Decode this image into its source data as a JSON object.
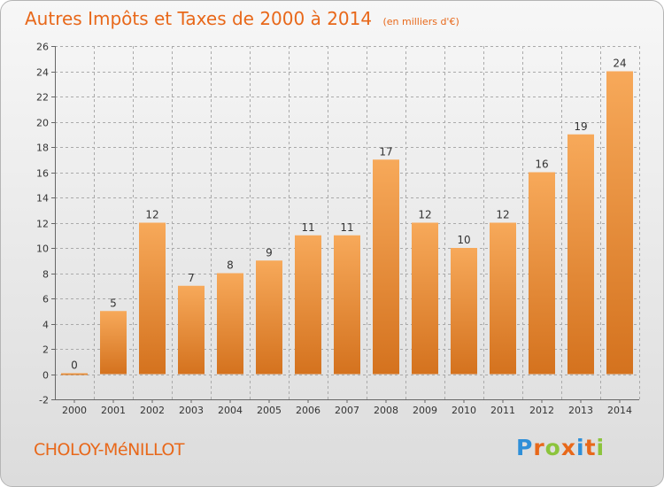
{
  "header": {
    "title": "Autres Impôts et Taxes de 2000 à 2014",
    "unit": "(en milliers d'€)"
  },
  "footer": {
    "commune": "CHOLOY-MéNILLOT",
    "logo_letters": [
      "P",
      "r",
      "o",
      "x",
      "i",
      "t",
      "i"
    ],
    "logo_colors": [
      "#2f8fd8",
      "#e8681a",
      "#8cc43c",
      "#e8681a",
      "#2f8fd8",
      "#e8681a",
      "#8cc43c"
    ]
  },
  "colors": {
    "title": "#e8681a",
    "bar_top": "#f7a95a",
    "bar_bottom": "#d4721e",
    "grid": "#aaaaaa"
  },
  "chart_data": {
    "type": "bar",
    "categories": [
      "2000",
      "2001",
      "2002",
      "2003",
      "2004",
      "2005",
      "2006",
      "2007",
      "2008",
      "2009",
      "2010",
      "2011",
      "2012",
      "2013",
      "2014"
    ],
    "values": [
      0,
      5,
      12,
      7,
      8,
      9,
      11,
      11,
      17,
      12,
      10,
      12,
      16,
      19,
      24
    ],
    "ylim": [
      -2,
      26
    ],
    "yticks": [
      -2,
      0,
      2,
      4,
      6,
      8,
      10,
      12,
      14,
      16,
      18,
      20,
      22,
      24,
      26
    ],
    "grid": true,
    "xlabel": "",
    "ylabel": ""
  }
}
